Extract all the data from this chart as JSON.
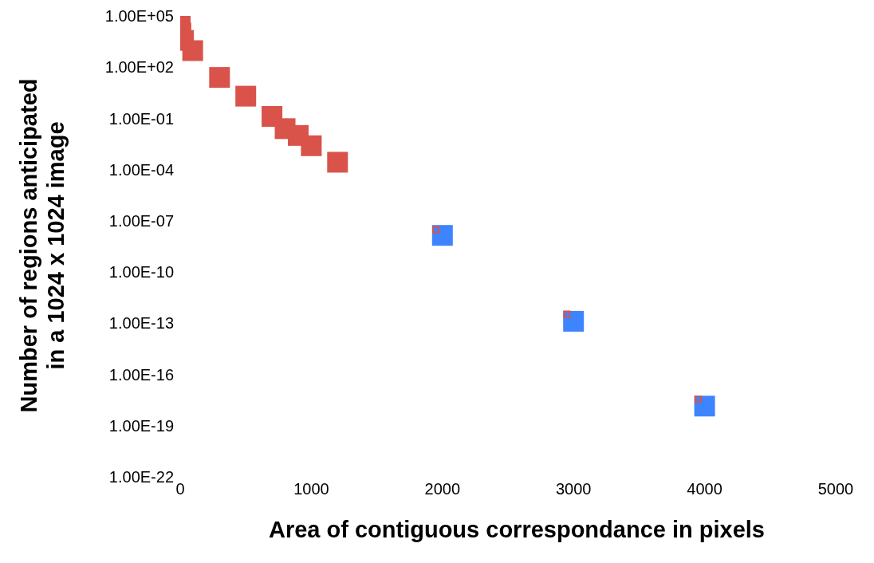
{
  "chart_data": {
    "type": "scatter",
    "xlabel": "Area of contiguous correspondance in pixels",
    "ylabel": "Number of regions anticipated in a 1024 x 1024  image",
    "log": "y",
    "marker": "square",
    "grid": false,
    "legend": false,
    "xlim": [
      0,
      5000
    ],
    "xticks": [
      0,
      1000,
      2000,
      3000,
      4000,
      5000
    ],
    "ylim": [
      1e-22,
      100000.0
    ],
    "yticks": [
      {
        "value": 1e-22,
        "label": "1.00E-22"
      },
      {
        "value": 1e-19,
        "label": "1.00E-19"
      },
      {
        "value": 1e-16,
        "label": "1.00E-16"
      },
      {
        "value": 1e-13,
        "label": "1.00E-13"
      },
      {
        "value": 1e-10,
        "label": "1.00E-10"
      },
      {
        "value": 1e-07,
        "label": "1.00E-07"
      },
      {
        "value": 0.0001,
        "label": "1.00E-04"
      },
      {
        "value": 0.1,
        "label": "1.00E-01"
      },
      {
        "value": 100,
        "label": "1.00E+02"
      },
      {
        "value": 100000,
        "label": "1.00E+05"
      }
    ],
    "series": [
      {
        "color": "#d9534a",
        "x": [
          0,
          5,
          25,
          95,
          300,
          500,
          700,
          800,
          900,
          1000,
          1200
        ],
        "values": [
          100000,
          10000,
          3700,
          930,
          25,
          2,
          0.13,
          0.025,
          0.01,
          0.0025,
          0.00027
        ]
      },
      {
        "color": "#3f84ff",
        "x": [
          2000,
          3000,
          4000
        ],
        "values": [
          1.4e-08,
          1.3e-13,
          1.4e-18
        ]
      },
      {
        "color": "#d9534a",
        "x": [
          1950,
          2950,
          3950
        ],
        "values": [
          3e-08,
          3.4e-13,
          3.6e-18
        ]
      }
    ]
  }
}
